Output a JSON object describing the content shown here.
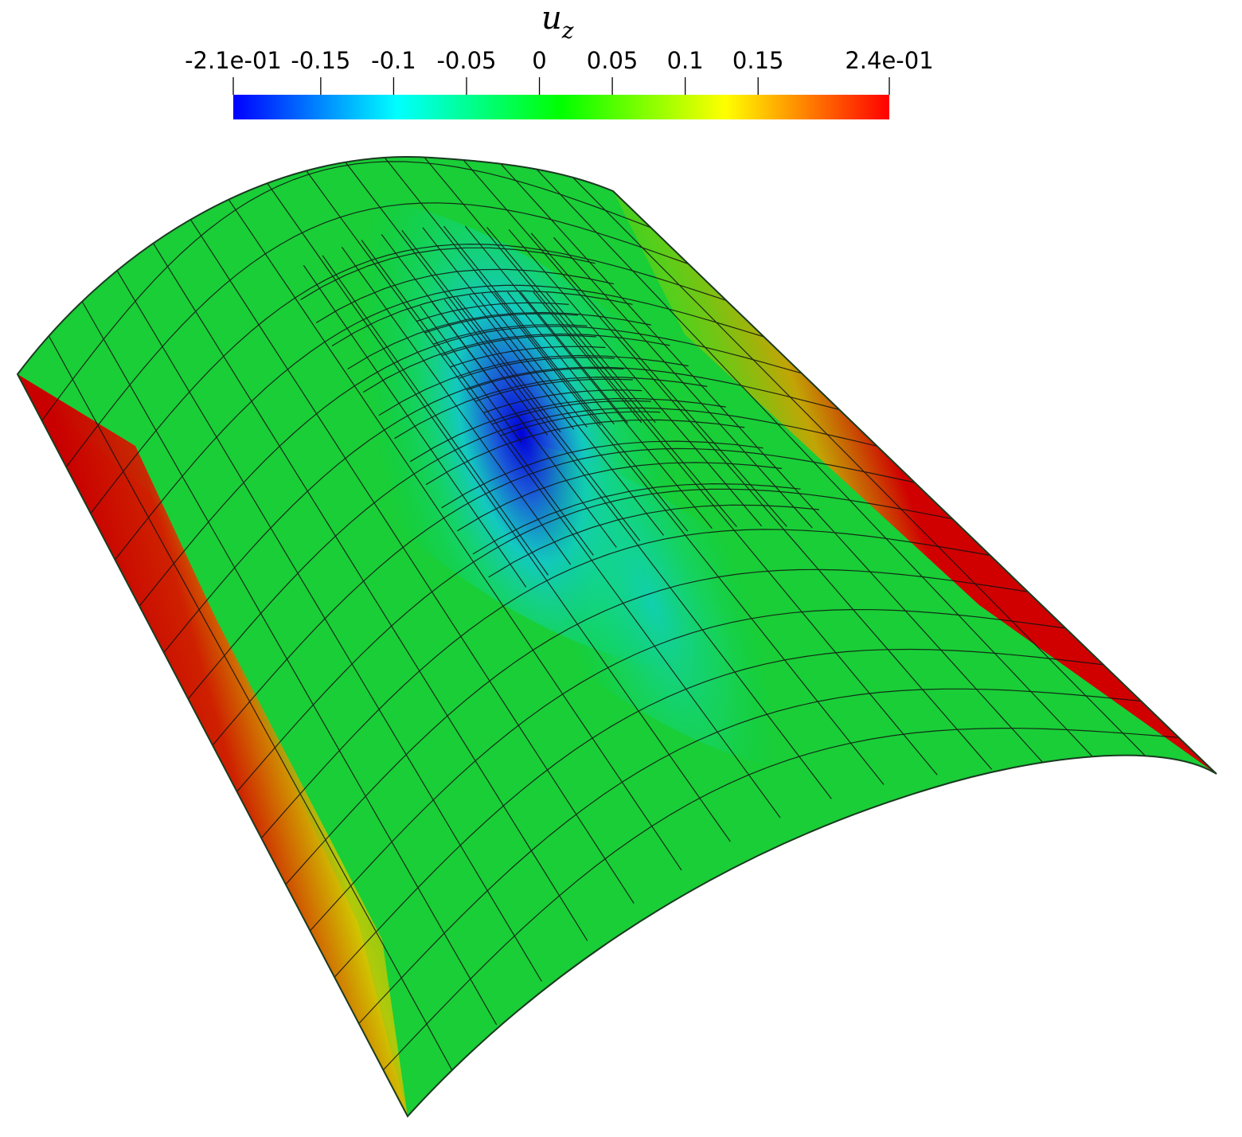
{
  "colorbar": {
    "title_main": "u",
    "title_sub": "z",
    "range": [
      -0.21,
      0.24
    ],
    "colormap": [
      "#0000ff",
      "#00ffff",
      "#00ff00",
      "#ffff00",
      "#ff0000"
    ],
    "ticks": [
      {
        "value": -0.21,
        "label": "-2.1e-01"
      },
      {
        "value": -0.15,
        "label": "-0.15"
      },
      {
        "value": -0.1,
        "label": "-0.1"
      },
      {
        "value": -0.05,
        "label": "-0.05"
      },
      {
        "value": 0,
        "label": "0"
      },
      {
        "value": 0.05,
        "label": "0.05"
      },
      {
        "value": 0.1,
        "label": "0.1"
      },
      {
        "value": 0.15,
        "label": "0.15"
      },
      {
        "value": 0.24,
        "label": "2.4e-01"
      }
    ]
  },
  "field": {
    "min_value": -0.21,
    "max_value": 0.24,
    "mesh_line_color": "#111111"
  }
}
